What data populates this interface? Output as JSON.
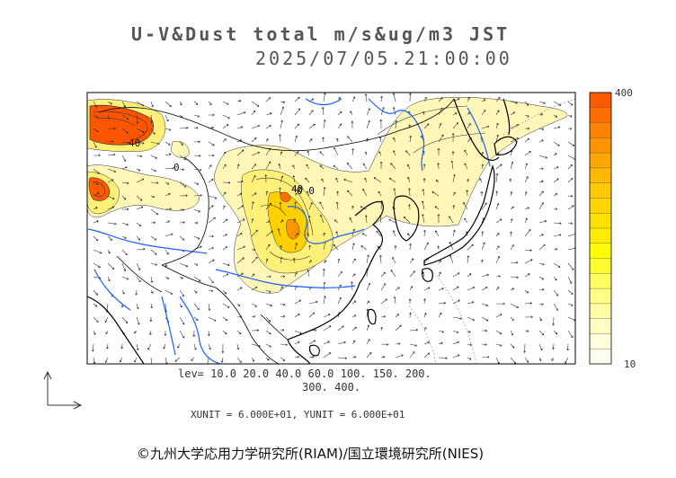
{
  "title": {
    "line1": "U-V&Dust total m/s&ug/m3 JST",
    "line2": "2025/07/05.21:00:00"
  },
  "levels": {
    "line1": "lev= 10.0 20.0 40.0 60.0 100. 150. 200.",
    "line2": "300. 400.",
    "values": [
      10,
      20,
      40,
      60,
      100,
      150,
      200,
      300,
      400
    ]
  },
  "units_line": "XUNIT = 6.000E+01, YUNIT = 6.000E+01",
  "colorbar": {
    "max_label": "400",
    "min_label": "10",
    "colors": [
      "#ff5a00",
      "#ff6e00",
      "#ff8200",
      "#ff9400",
      "#ffa600",
      "#ffb800",
      "#ffc800",
      "#ffd400",
      "#ffe000",
      "#ffec00",
      "#ffff00",
      "#ffff30",
      "#ffff60",
      "#ffff88",
      "#ffffa8",
      "#ffffc4",
      "#ffffdc",
      "#ffffee"
    ]
  },
  "contour_labels": {
    "a": "40",
    "b": "40",
    "c": "0 0",
    "d": "0"
  },
  "credit": "©九州大学応用力学研究所(RIAM)/国立環境研究所(NIES)",
  "map_colors": {
    "coast": "#000000",
    "rivers": "#1a5fff",
    "dust_low": "#fff6b8",
    "dust_mid": "#fff07a",
    "dust_high": "#ffd000",
    "dust_peak": "#ff5500"
  }
}
